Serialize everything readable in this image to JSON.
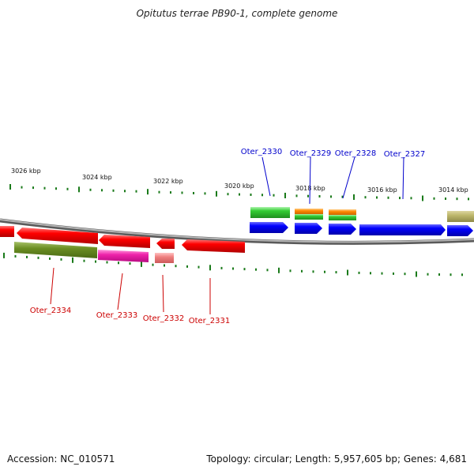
{
  "title": "Opitutus terrae PB90-1, complete genome",
  "footer": {
    "accession": "Accession: NC_010571",
    "summary": "Topology: circular; Length: 5,957,605 bp; Genes: 4,681"
  },
  "colors": {
    "backbone": "#8c8c8c",
    "tick": "#1a7a1a",
    "forward_label": "#0000cc",
    "reverse_label": "#cc0000"
  },
  "scale": {
    "unit": "kbp",
    "labels": [
      "3026 kbp",
      "3024 kbp",
      "3022 kbp",
      "3020 kbp",
      "3018 kbp",
      "3016 kbp",
      "3014 kbp"
    ]
  },
  "genes": {
    "forward": [
      "Oter_2330",
      "Oter_2329",
      "Oter_2328",
      "Oter_2327"
    ],
    "reverse": [
      "Oter_2334",
      "Oter_2333",
      "Oter_2332",
      "Oter_2331"
    ]
  }
}
